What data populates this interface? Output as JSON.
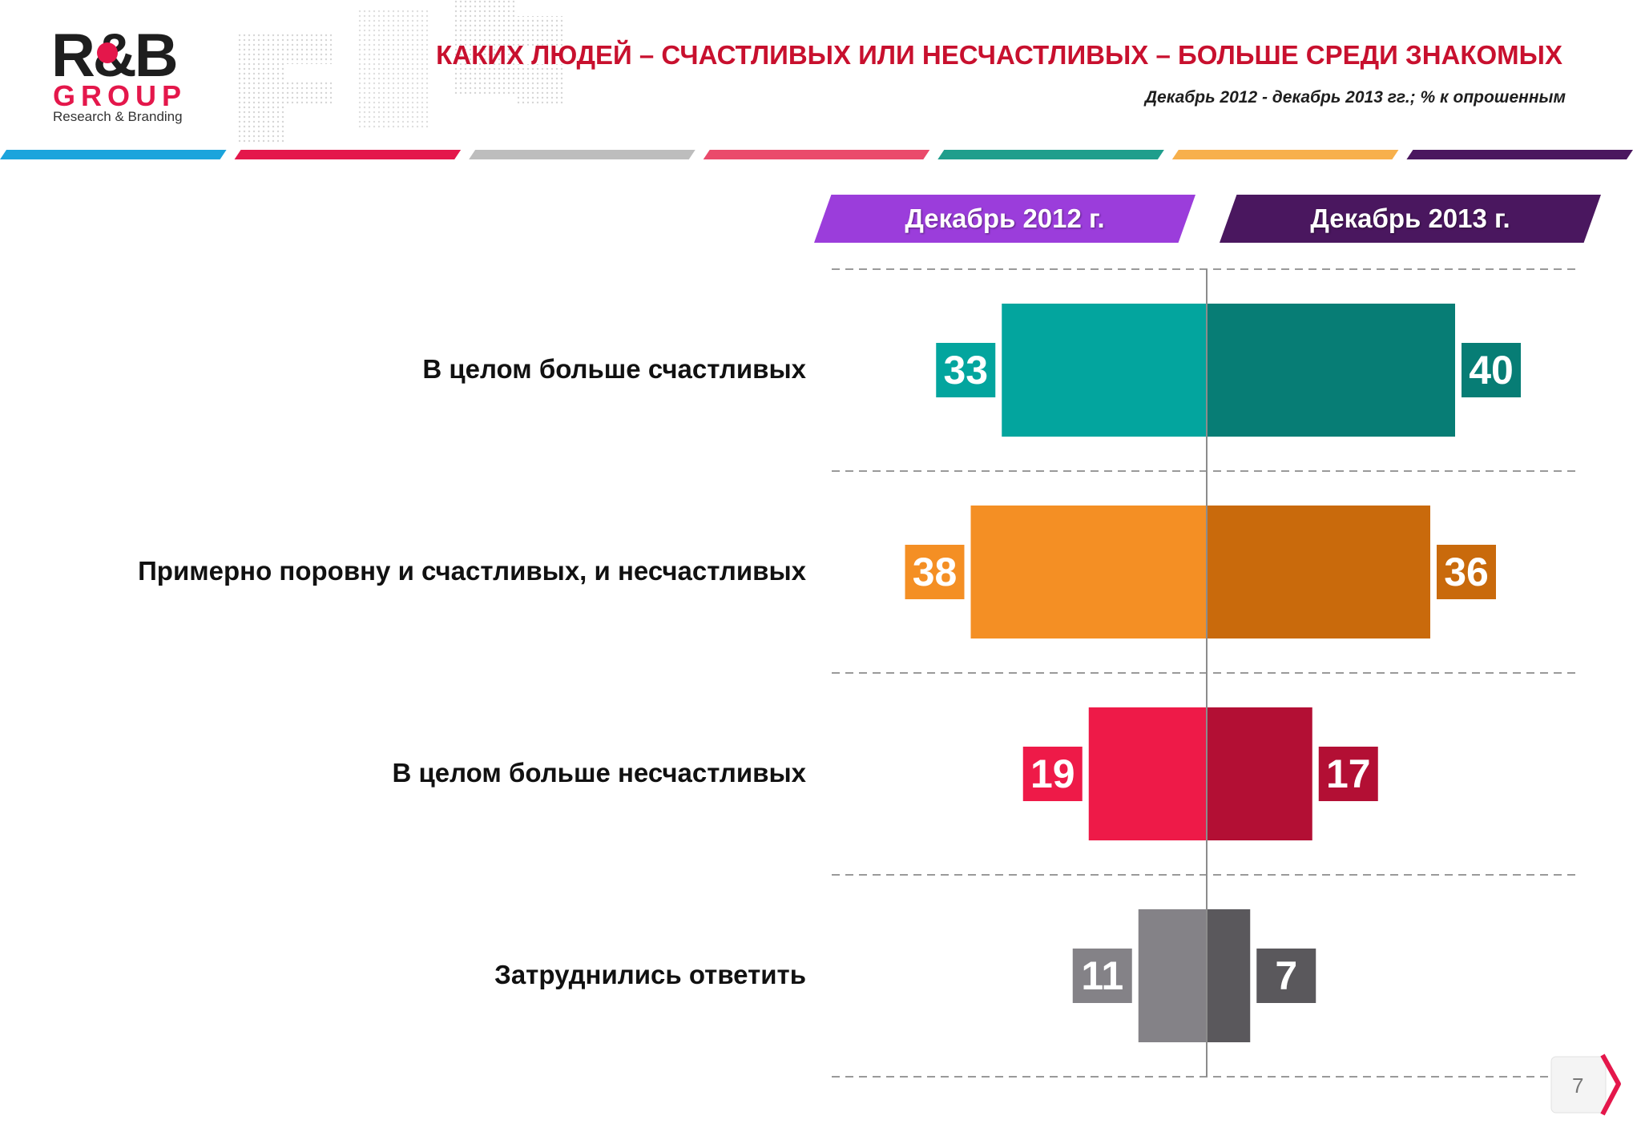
{
  "header": {
    "logo_main": "R&B",
    "logo_group": "GROUP",
    "logo_sub": "Research & Branding",
    "title": "КАКИХ ЛЮДЕЙ – СЧАСТЛИВЫХ ИЛИ НЕСЧАСТЛИВЫХ – БОЛЬШЕ СРЕДИ ЗНАКОМЫХ",
    "subtitle": "Декабрь  2012 - декабрь 2013 гг.; % к опрошенным"
  },
  "stripe_colors": [
    "#1ba4dc",
    "#e4174b",
    "#bdbdbd",
    "#ea4a6b",
    "#1f9e8c",
    "#f7b04c",
    "#4a175f"
  ],
  "page_number": "7",
  "chart_data": {
    "type": "bar",
    "orientation": "horizontal-diverging",
    "series": [
      {
        "name": "Декабрь 2012 г.",
        "side": "left",
        "values": [
          33,
          38,
          19,
          11
        ],
        "color": "#9b3ddb"
      },
      {
        "name": "Декабрь 2013 г.",
        "side": "right",
        "values": [
          40,
          36,
          17,
          7
        ],
        "color": "#4a175f"
      }
    ],
    "categories": [
      "В целом больше счастливых",
      "Примерно поровну и счастливых, и несчастливых",
      "В целом больше несчастливых",
      "Затруднились ответить"
    ],
    "category_colors": [
      {
        "left": "#03a59e",
        "right": "#077d75"
      },
      {
        "left": "#f48f24",
        "right": "#c96a0c"
      },
      {
        "left": "#ee1a48",
        "right": "#b30f34"
      },
      {
        "left": "#848287",
        "right": "#5a585c"
      }
    ],
    "xlabel": "",
    "ylabel": "",
    "xlim": [
      0,
      60
    ],
    "grid": true,
    "legend": "top"
  }
}
